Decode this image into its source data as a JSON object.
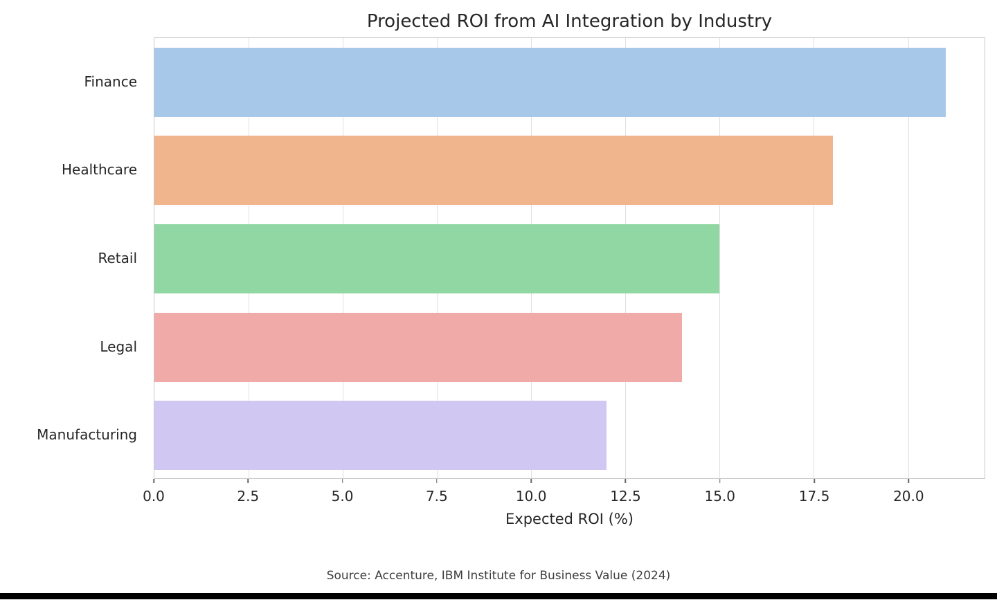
{
  "figure": {
    "title": "Projected ROI from AI Integration by Industry",
    "source_note": "Source: Accenture, IBM Institute for Business Value (2024)"
  },
  "chart_data": {
    "type": "bar",
    "orientation": "horizontal",
    "title": "Projected ROI from AI Integration by Industry",
    "categories": [
      "Finance",
      "Healthcare",
      "Retail",
      "Legal",
      "Manufacturing"
    ],
    "values": [
      21,
      18,
      15,
      14,
      12
    ],
    "bar_colors": [
      "#a7c8e9",
      "#f0b58c",
      "#90d7a4",
      "#f0aaa8",
      "#d0c7f3"
    ],
    "xlabel": "Expected ROI (%)",
    "ylabel": "",
    "xlim": [
      0,
      22.03
    ],
    "xticks": [
      0.0,
      2.5,
      5.0,
      7.5,
      10.0,
      12.5,
      15.0,
      17.5,
      20.0
    ],
    "xtick_labels": [
      "0.0",
      "2.5",
      "5.0",
      "7.5",
      "10.0",
      "12.5",
      "15.0",
      "17.5",
      "20.0"
    ],
    "grid": true,
    "grid_axis": "x",
    "legend_position": "none",
    "annotation": "Source: Accenture, IBM Institute for Business Value (2024)",
    "grid_color": "#e0e0e0",
    "spine_color": "#c9c9c9",
    "text_color": "#262626",
    "background_color": "#ffffff"
  }
}
